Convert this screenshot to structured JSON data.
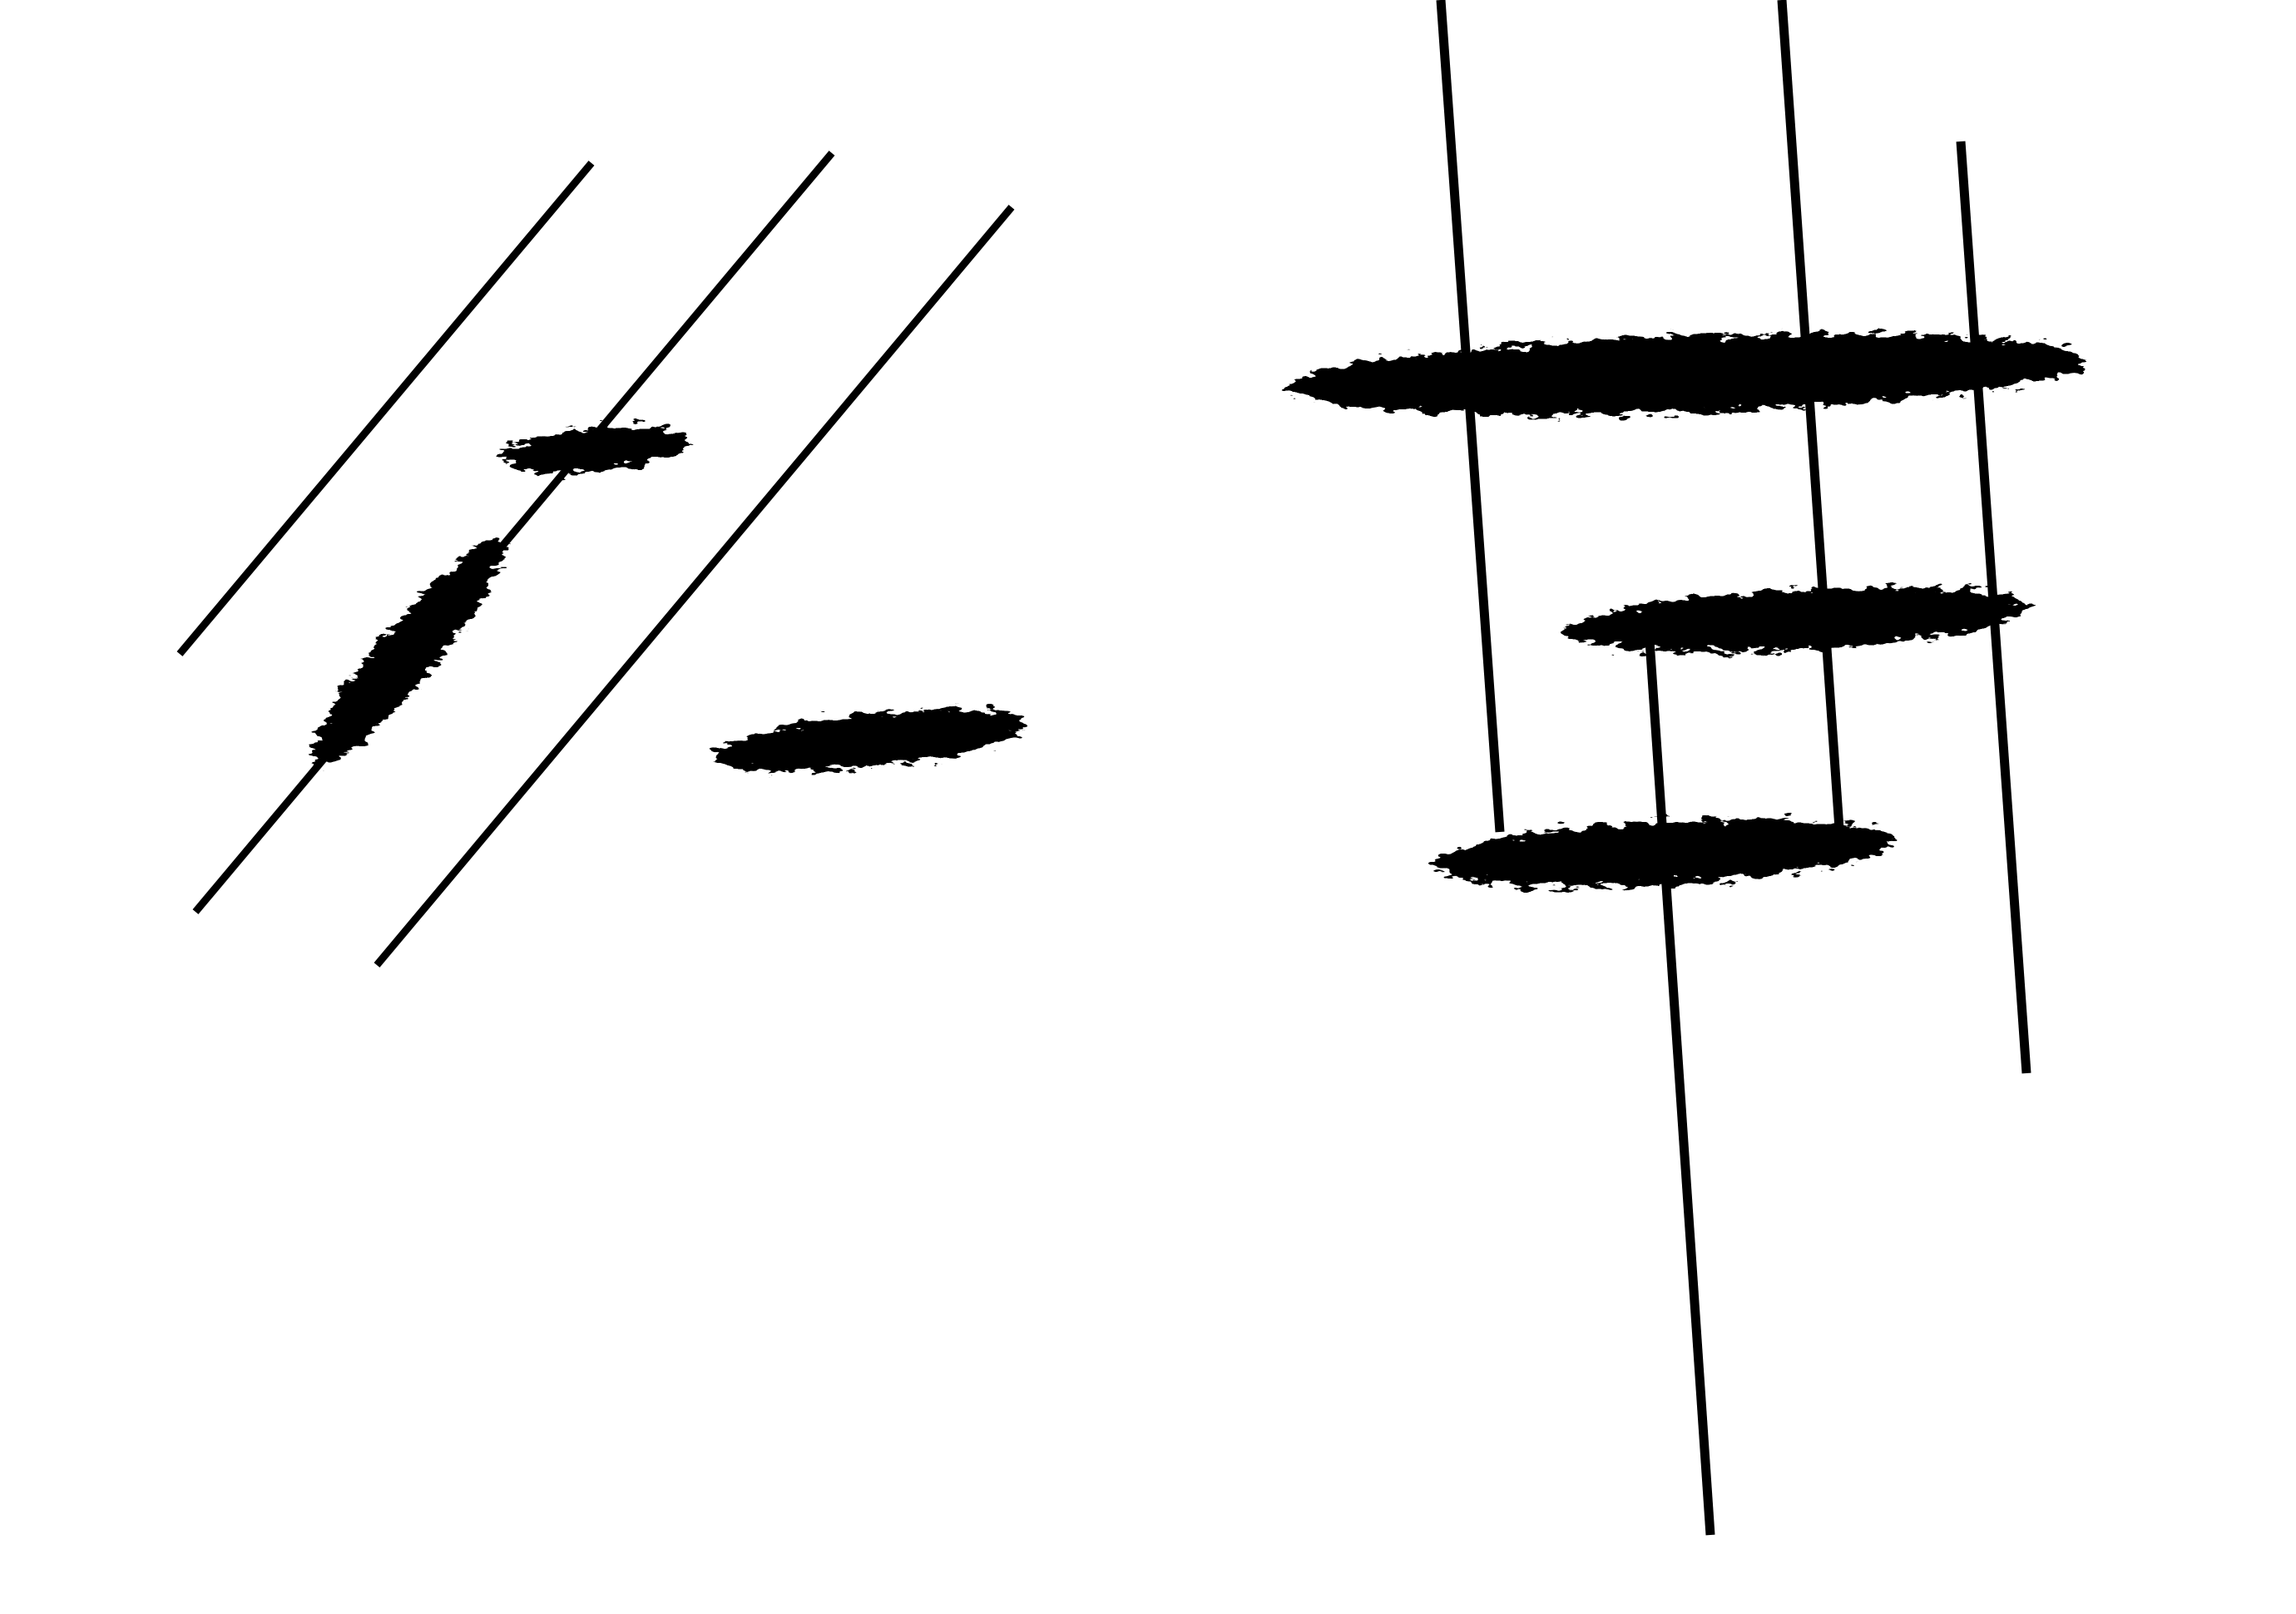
{
  "figure": {
    "background": "#ffffff",
    "ink": "#000000",
    "panels": [
      {
        "name": "left-panel",
        "stroke_count": 3,
        "blob_count": 3,
        "orientation": "diagonal"
      },
      {
        "name": "right-panel",
        "stroke_count": 4,
        "blob_count": 3,
        "orientation": "near-vertical"
      }
    ]
  }
}
